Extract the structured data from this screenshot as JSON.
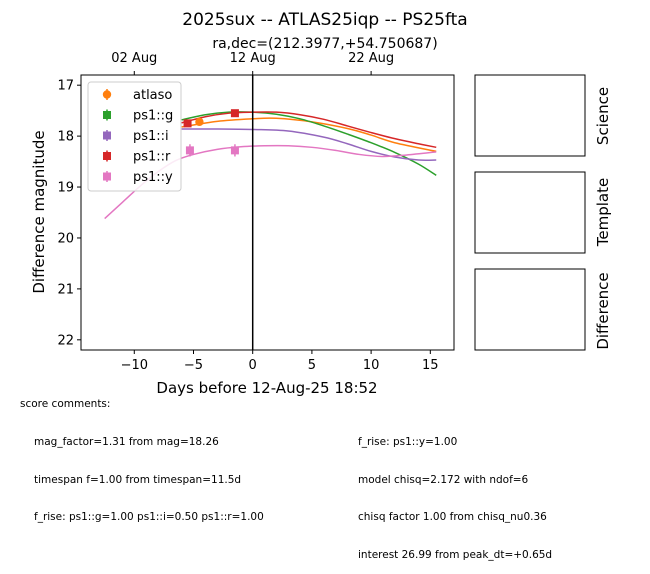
{
  "title": "2025sux -- ATLAS25iqp -- PS25fta",
  "subtitle": "ra,dec=(212.3977,+54.750687)",
  "chart_data": {
    "type": "scatter",
    "xlabel": "Days before 12-Aug-25 18:52",
    "ylabel": "Difference magnitude",
    "xlim": [
      -14.5,
      17
    ],
    "ylim": [
      22.2,
      16.8
    ],
    "y_inverted": true,
    "xticks": [
      -10,
      -5,
      0,
      5,
      10,
      15
    ],
    "yticks": [
      17,
      18,
      19,
      20,
      21,
      22
    ],
    "top_axis_ticks": [
      {
        "x": -10,
        "label": "02 Aug"
      },
      {
        "x": 0,
        "label": "12 Aug"
      },
      {
        "x": 10,
        "label": "22 Aug"
      }
    ],
    "vline_x": 0,
    "legend_position": "upper-left",
    "series": [
      {
        "name": "atlaso",
        "color": "#ff7f0e",
        "marker": "circle",
        "points": [
          {
            "x": -4.5,
            "y": 17.72,
            "err": 0.06
          }
        ],
        "model": [
          [
            -6,
            17.82
          ],
          [
            -3,
            17.71
          ],
          [
            0,
            17.66
          ],
          [
            2,
            17.65
          ],
          [
            5,
            17.72
          ],
          [
            8,
            17.85
          ],
          [
            10,
            17.98
          ],
          [
            12,
            18.13
          ],
          [
            15.5,
            18.3
          ]
        ]
      },
      {
        "name": "ps1::g",
        "color": "#2ca02c",
        "marker": "square",
        "points": [],
        "model": [
          [
            -6,
            17.68
          ],
          [
            -4,
            17.58
          ],
          [
            -2,
            17.53
          ],
          [
            0,
            17.53
          ],
          [
            2,
            17.57
          ],
          [
            4,
            17.66
          ],
          [
            6,
            17.8
          ],
          [
            8,
            17.96
          ],
          [
            10,
            18.13
          ],
          [
            12,
            18.32
          ],
          [
            14,
            18.55
          ],
          [
            15.5,
            18.77
          ]
        ]
      },
      {
        "name": "ps1::i",
        "color": "#9467bd",
        "marker": "square",
        "points": [],
        "model": [
          [
            -6,
            17.86
          ],
          [
            -3,
            17.86
          ],
          [
            0,
            17.87
          ],
          [
            3,
            17.9
          ],
          [
            6,
            18.02
          ],
          [
            8,
            18.15
          ],
          [
            10,
            18.3
          ],
          [
            12,
            18.41
          ],
          [
            14,
            18.47
          ],
          [
            15.5,
            18.47
          ]
        ]
      },
      {
        "name": "ps1::r",
        "color": "#d62728",
        "marker": "square",
        "points": [
          {
            "x": -5.5,
            "y": 17.75,
            "err": 0.05
          },
          {
            "x": -1.5,
            "y": 17.55,
            "err": 0.05
          }
        ],
        "model": [
          [
            -6,
            17.74
          ],
          [
            -4,
            17.62
          ],
          [
            -2,
            17.55
          ],
          [
            0,
            17.53
          ],
          [
            2,
            17.53
          ],
          [
            4,
            17.58
          ],
          [
            6,
            17.67
          ],
          [
            8,
            17.8
          ],
          [
            10,
            17.93
          ],
          [
            12,
            18.05
          ],
          [
            14,
            18.15
          ],
          [
            15.5,
            18.22
          ]
        ]
      },
      {
        "name": "ps1::y",
        "color": "#e377c2",
        "marker": "square",
        "points": [
          {
            "x": -5.3,
            "y": 18.28,
            "err": 0.12
          },
          {
            "x": -1.5,
            "y": 18.28,
            "err": 0.12
          }
        ],
        "model": [
          [
            -12.5,
            19.62
          ],
          [
            -11,
            19.3
          ],
          [
            -9.5,
            18.98
          ],
          [
            -8,
            18.7
          ],
          [
            -6.5,
            18.48
          ],
          [
            -5,
            18.36
          ],
          [
            -3,
            18.26
          ],
          [
            -1,
            18.21
          ],
          [
            1,
            18.19
          ],
          [
            3,
            18.19
          ],
          [
            5,
            18.22
          ],
          [
            7,
            18.28
          ],
          [
            9,
            18.36
          ],
          [
            11,
            18.4
          ],
          [
            13,
            18.37
          ],
          [
            15.5,
            18.31
          ]
        ]
      }
    ]
  },
  "side_panels": [
    {
      "label": "Science"
    },
    {
      "label": "Template"
    },
    {
      "label": "Difference"
    }
  ],
  "comments": {
    "title": "score comments:",
    "left": [
      "mag_factor=1.31 from mag=18.26",
      "timespan f=1.00 from timespan=11.5d",
      "f_rise: ps1::g=1.00 ps1::i=0.50 ps1::r=1.00"
    ],
    "right": [
      "f_rise: ps1::y=1.00",
      "model chisq=2.172 with ndof=6",
      "chisq factor 1.00 from chisq_nu0.36",
      "interest 26.99 from peak_dt=+0.65d"
    ]
  }
}
